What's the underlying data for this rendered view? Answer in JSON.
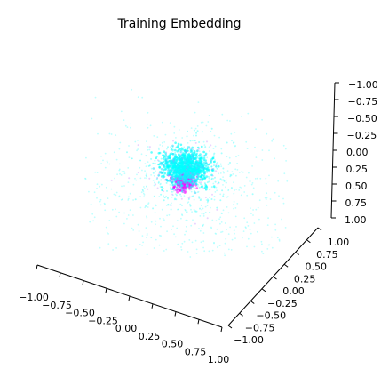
{
  "chart_data": {
    "type": "scatter",
    "projection": "3d",
    "title": "Training Embedding",
    "xlabel": "",
    "ylabel": "",
    "zlabel": "",
    "xlim": [
      -1.0,
      1.0
    ],
    "ylim": [
      -1.0,
      1.0
    ],
    "zlim": [
      -1.0,
      1.0
    ],
    "x_ticks": [
      "−1.00",
      "−0.75",
      "−0.50",
      "−0.25",
      "0.00",
      "0.25",
      "0.50",
      "0.75",
      "1.00"
    ],
    "y_ticks": [
      "−1.00",
      "−0.75",
      "−0.50",
      "−0.25",
      "0.00",
      "0.25",
      "0.50",
      "0.75",
      "1.00"
    ],
    "z_ticks": [
      "−1.00",
      "−0.75",
      "−0.50",
      "−0.25",
      "0.00",
      "0.25",
      "0.50",
      "0.75",
      "1.00"
    ],
    "grid": false,
    "legend": "none",
    "colormap": "cool",
    "colors": {
      "cyan": "#00ffff",
      "magenta": "#ff00ff",
      "axis": "#000000"
    },
    "series": [
      {
        "description": "dense embedding cluster near the origin, coloured by cool colormap",
        "center": [
          0.0,
          0.0,
          0.0
        ],
        "approx_std_core": 0.12,
        "approx_std_halo": 0.6
      }
    ]
  }
}
